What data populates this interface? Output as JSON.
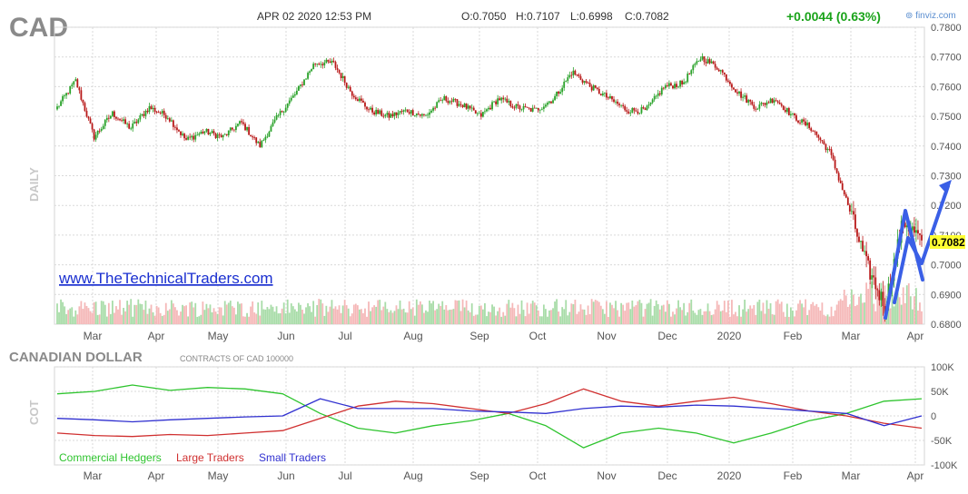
{
  "header": {
    "ticker": "CAD",
    "datetime": "APR 02 2020 12:53 PM",
    "open": "O:0.7050",
    "high": "H:0.7107",
    "low": "L:0.6998",
    "close": "C:0.7082",
    "change": "+0.0044 (0.63%)",
    "source": "finviz.com",
    "side_label": "DAILY",
    "watermark": "www.TheTechnicalTraders.com"
  },
  "colors": {
    "up": "#2aa22a",
    "down": "#b81818",
    "vol_up": "#a8dca8",
    "vol_down": "#f5b8b8",
    "grid": "#d9d9d9",
    "annotation": "#3a5fe6",
    "change": "#1aa31a",
    "price_tag": "#ffff33"
  },
  "chart_data": [
    {
      "type": "candlestick",
      "title": "CAD",
      "ylabel": "",
      "ylim": [
        0.68,
        0.78
      ],
      "y_ticks": [
        "0.7800",
        "0.7700",
        "0.7600",
        "0.7500",
        "0.7400",
        "0.7300",
        "0.7200",
        "0.7100",
        "0.7000",
        "0.6900",
        "0.6800"
      ],
      "x_ticks": [
        "Mar",
        "Apr",
        "May",
        "Jun",
        "Jul",
        "Aug",
        "Sep",
        "Oct",
        "Nov",
        "Dec",
        "2020",
        "Feb",
        "Mar",
        "Apr"
      ],
      "last_price_label": "0.7082",
      "close_series": [
        0.753,
        0.762,
        0.743,
        0.751,
        0.746,
        0.753,
        0.75,
        0.742,
        0.745,
        0.743,
        0.748,
        0.74,
        0.75,
        0.758,
        0.768,
        0.768,
        0.758,
        0.752,
        0.75,
        0.752,
        0.75,
        0.756,
        0.754,
        0.75,
        0.756,
        0.753,
        0.752,
        0.756,
        0.765,
        0.76,
        0.756,
        0.752,
        0.752,
        0.76,
        0.761,
        0.77,
        0.766,
        0.758,
        0.753,
        0.756,
        0.75,
        0.746,
        0.738,
        0.72,
        0.7,
        0.686,
        0.715,
        0.7082
      ]
    },
    {
      "type": "line",
      "title": "CANADIAN DOLLAR",
      "subtitle": "CONTRACTS OF CAD 100000",
      "ylabel": "COT",
      "ylim": [
        -100000,
        100000
      ],
      "y_ticks": [
        "100K",
        "50K",
        "0",
        "-50K",
        "-100K"
      ],
      "x_ticks": [
        "Mar",
        "Apr",
        "May",
        "Jun",
        "Jul",
        "Aug",
        "Sep",
        "Oct",
        "Nov",
        "Dec",
        "2020",
        "Feb",
        "Mar",
        "Apr"
      ],
      "series": [
        {
          "name": "Commercial Hedgers",
          "values": [
            45000,
            50000,
            63000,
            52000,
            58000,
            55000,
            45000,
            5000,
            -25000,
            -35000,
            -20000,
            -10000,
            5000,
            -20000,
            -65000,
            -35000,
            -25000,
            -35000,
            -55000,
            -35000,
            -10000,
            5000,
            30000,
            35000
          ]
        },
        {
          "name": "Large Traders",
          "values": [
            -35000,
            -40000,
            -42000,
            -38000,
            -40000,
            -35000,
            -30000,
            -5000,
            20000,
            30000,
            25000,
            15000,
            5000,
            25000,
            55000,
            30000,
            20000,
            30000,
            38000,
            25000,
            10000,
            0,
            -15000,
            -25000
          ]
        },
        {
          "name": "Small Traders",
          "values": [
            -5000,
            -8000,
            -12000,
            -8000,
            -5000,
            -2000,
            0,
            35000,
            15000,
            15000,
            15000,
            10000,
            8000,
            5000,
            15000,
            20000,
            18000,
            22000,
            20000,
            15000,
            10000,
            5000,
            -20000,
            0
          ]
        }
      ]
    }
  ]
}
